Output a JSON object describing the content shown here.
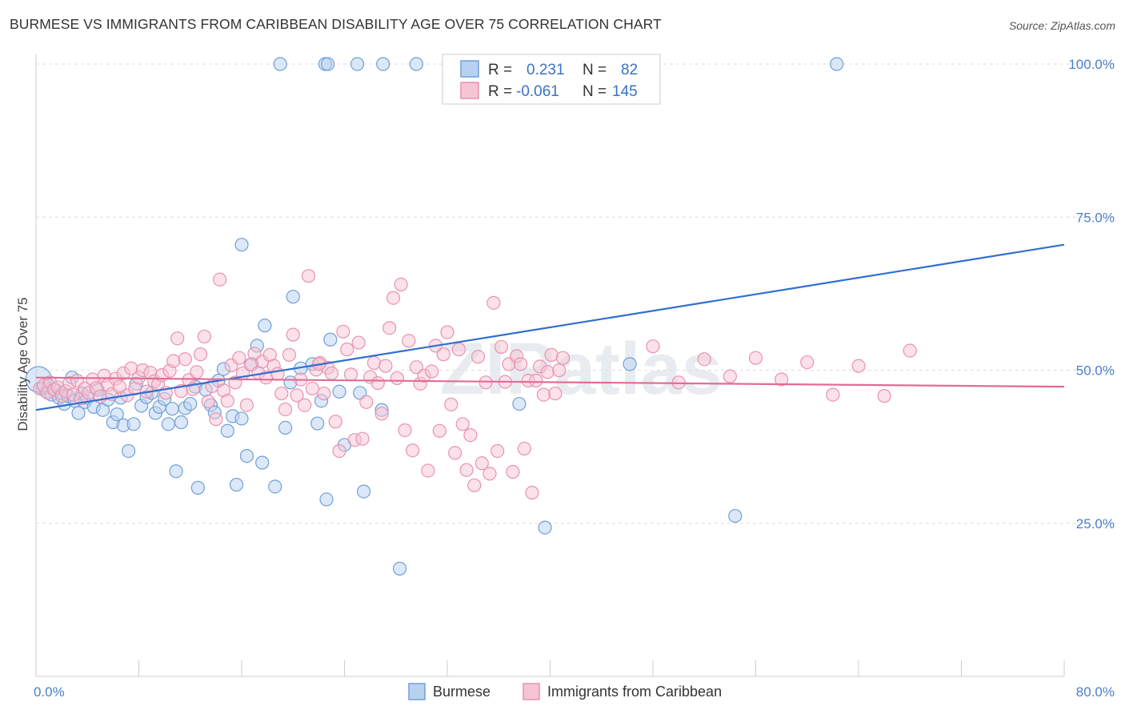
{
  "title": "BURMESE VS IMMIGRANTS FROM CARIBBEAN DISABILITY AGE OVER 75 CORRELATION CHART",
  "source": "Source: ZipAtlas.com",
  "watermark": "ZIPatlas",
  "legend_box": {
    "rows": [
      {
        "r_label": "R =",
        "r_value": "0.231",
        "n_label": "N =",
        "n_value": "82"
      },
      {
        "r_label": "R =",
        "r_value": "-0.061",
        "n_label": "N =",
        "n_value": "145"
      }
    ]
  },
  "chart_data": {
    "type": "scatter",
    "title": "BURMESE VS IMMIGRANTS FROM CARIBBEAN DISABILITY AGE OVER 75 CORRELATION CHART",
    "xlabel": "",
    "ylabel": "Disability Age Over 75",
    "xlim": [
      0,
      80
    ],
    "ylim": [
      0,
      105
    ],
    "x_tick_labels": [
      {
        "value": 0,
        "label": "0.0%"
      },
      {
        "value": 80,
        "label": "80.0%"
      }
    ],
    "y_tick_labels": [
      {
        "value": 25,
        "label": "25.0%"
      },
      {
        "value": 50,
        "label": "50.0%"
      },
      {
        "value": 75,
        "label": "75.0%"
      },
      {
        "value": 100,
        "label": "100.0%"
      }
    ],
    "grid": "horizontal dashed",
    "legend_placement": "bottom-center",
    "series": [
      {
        "name": "Burmese",
        "color": "#6f9fd8",
        "fill": "#b9d1f0",
        "line_color": "#2f6fd0",
        "R": 0.231,
        "N": 82,
        "trend": {
          "x0": 0,
          "y0": 43.5,
          "x1": 80,
          "y1": 70.5
        },
        "points": [
          [
            0.2,
            48.5
          ],
          [
            0.5,
            47.0
          ],
          [
            0.8,
            46.5
          ],
          [
            1.0,
            47.5
          ],
          [
            1.2,
            46.0
          ],
          [
            1.5,
            46.8
          ],
          [
            1.8,
            45.5
          ],
          [
            2.0,
            46.2
          ],
          [
            2.2,
            44.5
          ],
          [
            2.5,
            45.8
          ],
          [
            2.8,
            48.8
          ],
          [
            3.0,
            45.0
          ],
          [
            3.3,
            43.0
          ],
          [
            3.6,
            46.2
          ],
          [
            3.8,
            44.8
          ],
          [
            4.0,
            45.5
          ],
          [
            4.5,
            44.0
          ],
          [
            4.8,
            46.8
          ],
          [
            5.2,
            43.5
          ],
          [
            5.6,
            45.2
          ],
          [
            6.0,
            41.5
          ],
          [
            6.3,
            42.8
          ],
          [
            6.6,
            45.5
          ],
          [
            6.8,
            41.0
          ],
          [
            7.2,
            36.8
          ],
          [
            7.6,
            41.2
          ],
          [
            7.8,
            47.8
          ],
          [
            8.2,
            44.2
          ],
          [
            8.6,
            45.6
          ],
          [
            9.0,
            46.3
          ],
          [
            9.3,
            43.0
          ],
          [
            9.6,
            44.0
          ],
          [
            10.0,
            45.3
          ],
          [
            10.3,
            41.2
          ],
          [
            10.6,
            43.7
          ],
          [
            10.9,
            33.5
          ],
          [
            11.3,
            41.5
          ],
          [
            11.6,
            43.8
          ],
          [
            12.0,
            44.5
          ],
          [
            12.4,
            47.3
          ],
          [
            12.6,
            30.8
          ],
          [
            13.2,
            46.8
          ],
          [
            13.6,
            44.3
          ],
          [
            13.9,
            43.1
          ],
          [
            14.2,
            48.3
          ],
          [
            14.6,
            50.2
          ],
          [
            14.9,
            40.1
          ],
          [
            15.3,
            42.5
          ],
          [
            15.6,
            31.3
          ],
          [
            16.0,
            42.1
          ],
          [
            16.4,
            36.0
          ],
          [
            16.8,
            51.0
          ],
          [
            17.2,
            54.0
          ],
          [
            17.6,
            34.9
          ],
          [
            17.8,
            57.3
          ],
          [
            18.6,
            31.0
          ],
          [
            19.4,
            40.6
          ],
          [
            19.8,
            48.0
          ],
          [
            20.0,
            62.0
          ],
          [
            20.6,
            50.3
          ],
          [
            21.5,
            51.0
          ],
          [
            21.9,
            41.3
          ],
          [
            22.2,
            45.0
          ],
          [
            22.6,
            28.9
          ],
          [
            22.9,
            55.0
          ],
          [
            23.6,
            46.5
          ],
          [
            24.0,
            37.8
          ],
          [
            25.2,
            46.3
          ],
          [
            25.5,
            30.2
          ],
          [
            26.9,
            43.5
          ],
          [
            16.0,
            70.5
          ],
          [
            28.3,
            17.6
          ],
          [
            37.6,
            44.5
          ],
          [
            39.6,
            24.3
          ],
          [
            46.2,
            51.0
          ],
          [
            54.4,
            26.2
          ],
          [
            19.0,
            100
          ],
          [
            22.5,
            100
          ],
          [
            22.7,
            100
          ],
          [
            25.0,
            100
          ],
          [
            27.0,
            100
          ],
          [
            29.6,
            100
          ],
          [
            62.3,
            100
          ]
        ]
      },
      {
        "name": "Immigrants from Caribbean",
        "color": "#e992b0",
        "fill": "#f7c4d4",
        "line_color": "#e36b97",
        "R": -0.061,
        "N": 145,
        "trend": {
          "x0": 0,
          "y0": 48.8,
          "x1": 80,
          "y1": 47.3
        },
        "points": [
          [
            0.3,
            47.0
          ],
          [
            0.6,
            47.5
          ],
          [
            0.9,
            46.3
          ],
          [
            1.1,
            48.0
          ],
          [
            1.4,
            46.8
          ],
          [
            1.7,
            47.2
          ],
          [
            2.0,
            45.8
          ],
          [
            2.3,
            46.6
          ],
          [
            2.6,
            47.9
          ],
          [
            2.9,
            46.0
          ],
          [
            3.2,
            48.3
          ],
          [
            3.5,
            45.4
          ],
          [
            3.8,
            47.0
          ],
          [
            4.1,
            46.3
          ],
          [
            4.4,
            48.5
          ],
          [
            4.7,
            47.1
          ],
          [
            5.0,
            45.7
          ],
          [
            5.3,
            49.1
          ],
          [
            5.6,
            47.6
          ],
          [
            5.9,
            46.1
          ],
          [
            6.2,
            48.6
          ],
          [
            6.5,
            47.3
          ],
          [
            6.8,
            49.5
          ],
          [
            7.1,
            45.9
          ],
          [
            7.4,
            50.3
          ],
          [
            7.7,
            47.0
          ],
          [
            8.0,
            48.8
          ],
          [
            8.3,
            50.0
          ],
          [
            8.6,
            46.5
          ],
          [
            8.9,
            49.6
          ],
          [
            9.2,
            48.2
          ],
          [
            9.5,
            47.7
          ],
          [
            9.8,
            49.2
          ],
          [
            10.1,
            46.3
          ],
          [
            10.4,
            49.9
          ],
          [
            10.7,
            51.5
          ],
          [
            11.0,
            55.2
          ],
          [
            11.3,
            46.6
          ],
          [
            11.6,
            51.8
          ],
          [
            11.9,
            48.4
          ],
          [
            12.2,
            46.9
          ],
          [
            12.5,
            49.7
          ],
          [
            12.8,
            52.6
          ],
          [
            13.1,
            55.5
          ],
          [
            13.4,
            44.9
          ],
          [
            13.7,
            47.4
          ],
          [
            14.0,
            42.0
          ],
          [
            14.3,
            64.8
          ],
          [
            14.6,
            46.7
          ],
          [
            14.9,
            45.0
          ],
          [
            15.2,
            50.8
          ],
          [
            15.5,
            48.0
          ],
          [
            15.8,
            52.0
          ],
          [
            16.1,
            49.5
          ],
          [
            16.4,
            44.3
          ],
          [
            16.7,
            50.9
          ],
          [
            17.0,
            52.7
          ],
          [
            17.3,
            49.6
          ],
          [
            17.6,
            51.4
          ],
          [
            17.9,
            48.8
          ],
          [
            18.2,
            52.5
          ],
          [
            18.5,
            50.7
          ],
          [
            18.8,
            49.4
          ],
          [
            19.1,
            46.2
          ],
          [
            19.4,
            43.6
          ],
          [
            19.7,
            52.5
          ],
          [
            20.0,
            55.8
          ],
          [
            20.3,
            45.9
          ],
          [
            20.6,
            48.5
          ],
          [
            20.9,
            44.3
          ],
          [
            21.2,
            65.4
          ],
          [
            21.5,
            47.0
          ],
          [
            21.8,
            50.1
          ],
          [
            22.1,
            51.2
          ],
          [
            22.4,
            46.2
          ],
          [
            22.7,
            50.4
          ],
          [
            23.0,
            49.5
          ],
          [
            23.3,
            41.6
          ],
          [
            23.6,
            36.8
          ],
          [
            23.9,
            56.3
          ],
          [
            24.2,
            53.4
          ],
          [
            24.5,
            49.3
          ],
          [
            24.8,
            38.6
          ],
          [
            25.1,
            54.5
          ],
          [
            25.4,
            38.8
          ],
          [
            25.7,
            44.8
          ],
          [
            26.0,
            48.9
          ],
          [
            26.3,
            51.2
          ],
          [
            26.6,
            47.9
          ],
          [
            26.9,
            42.9
          ],
          [
            27.2,
            50.7
          ],
          [
            27.5,
            56.9
          ],
          [
            27.8,
            61.8
          ],
          [
            28.1,
            48.7
          ],
          [
            28.4,
            64.0
          ],
          [
            28.7,
            40.2
          ],
          [
            29.0,
            54.8
          ],
          [
            29.3,
            36.9
          ],
          [
            29.6,
            50.5
          ],
          [
            29.9,
            47.8
          ],
          [
            30.2,
            49.1
          ],
          [
            30.5,
            33.6
          ],
          [
            30.8,
            49.8
          ],
          [
            31.1,
            54.0
          ],
          [
            31.4,
            40.1
          ],
          [
            31.7,
            52.6
          ],
          [
            32.0,
            56.2
          ],
          [
            32.3,
            44.4
          ],
          [
            32.6,
            36.5
          ],
          [
            32.9,
            53.4
          ],
          [
            33.2,
            41.2
          ],
          [
            33.5,
            33.7
          ],
          [
            33.8,
            39.4
          ],
          [
            34.1,
            31.2
          ],
          [
            34.4,
            52.2
          ],
          [
            34.7,
            34.8
          ],
          [
            35.0,
            48.0
          ],
          [
            35.3,
            33.1
          ],
          [
            35.6,
            61.0
          ],
          [
            35.9,
            36.8
          ],
          [
            36.2,
            53.8
          ],
          [
            36.5,
            48.1
          ],
          [
            36.8,
            51.0
          ],
          [
            37.1,
            33.4
          ],
          [
            37.4,
            52.3
          ],
          [
            37.7,
            51.0
          ],
          [
            38.0,
            37.2
          ],
          [
            38.3,
            48.3
          ],
          [
            38.6,
            30.0
          ],
          [
            38.9,
            48.3
          ],
          [
            39.2,
            50.6
          ],
          [
            39.5,
            46.0
          ],
          [
            39.8,
            49.7
          ],
          [
            40.1,
            52.5
          ],
          [
            40.4,
            46.2
          ],
          [
            40.7,
            50.0
          ],
          [
            41.0,
            52.0
          ],
          [
            48.0,
            53.9
          ],
          [
            50.0,
            48.0
          ],
          [
            52.0,
            51.8
          ],
          [
            54.0,
            49.0
          ],
          [
            56.0,
            52.0
          ],
          [
            58.0,
            48.5
          ],
          [
            60.0,
            51.3
          ],
          [
            62.0,
            46.0
          ],
          [
            64.0,
            50.7
          ],
          [
            66.0,
            45.8
          ],
          [
            68.0,
            53.2
          ],
          [
            22.0,
            51.0
          ]
        ]
      }
    ]
  },
  "bottom_legend": [
    {
      "label": "Burmese"
    },
    {
      "label": "Immigrants from Caribbean"
    }
  ]
}
